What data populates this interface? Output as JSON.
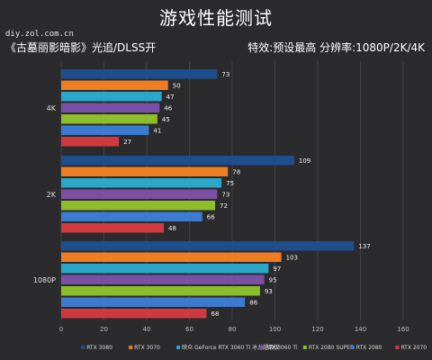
{
  "header": {
    "title": "游戏性能测试",
    "site": "diy.zol.com.cn",
    "game": "《古墓丽影暗影》光追/DLSS开",
    "settings": "特效:预设最高  分辨率:1080P/2K/4K"
  },
  "colors": {
    "background": "#2b2b2d",
    "grid": "#4a4a4d"
  },
  "chart_data": {
    "type": "bar",
    "orientation": "horizontal",
    "title": "游戏性能测试",
    "categories": [
      "4K",
      "2K",
      "1080P"
    ],
    "xlim": [
      0,
      160
    ],
    "xticks": [
      0,
      20,
      40,
      60,
      80,
      100,
      120,
      140,
      160
    ],
    "grid": true,
    "legend_position": "bottom",
    "series": [
      {
        "name": "RTX 3080",
        "color": "#1f4e8c",
        "values": [
          73,
          109,
          137
        ]
      },
      {
        "name": "RTX 3070",
        "color": "#ef7d22",
        "values": [
          50,
          78,
          103
        ]
      },
      {
        "name": "映众 GeForce RTX 3060 Ti 冰龙超级版",
        "color": "#2aa7c9",
        "values": [
          47,
          75,
          97
        ]
      },
      {
        "name": "RTX 3060 Ti",
        "color": "#7b4fa6",
        "values": [
          46,
          73,
          95
        ]
      },
      {
        "name": "RTX 2080 SUPER",
        "color": "#8cbd2a",
        "values": [
          45,
          72,
          93
        ]
      },
      {
        "name": "RTX 2080",
        "color": "#3d7bd0",
        "values": [
          41,
          66,
          86
        ]
      },
      {
        "name": "RTX 2070",
        "color": "#d03a3f",
        "values": [
          27,
          48,
          68
        ]
      }
    ]
  }
}
